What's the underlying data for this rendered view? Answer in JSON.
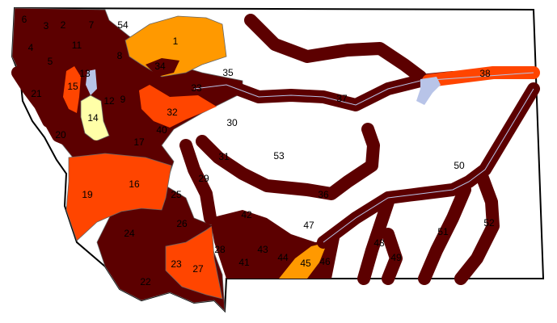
{
  "colors": {
    "severe": "#5c0000",
    "high": "#ff4500",
    "moderate": "#ff9900",
    "low": "#ffffa8",
    "none": "#ffffff",
    "water": "#b8c4e8",
    "boundary": "#000000"
  },
  "basins": [
    {
      "id": "1",
      "level": "moderate"
    },
    {
      "id": "2",
      "level": "severe"
    },
    {
      "id": "3",
      "level": "severe"
    },
    {
      "id": "4",
      "level": "severe"
    },
    {
      "id": "5",
      "level": "severe"
    },
    {
      "id": "6",
      "level": "severe"
    },
    {
      "id": "7",
      "level": "severe"
    },
    {
      "id": "8",
      "level": "severe"
    },
    {
      "id": "9",
      "level": "severe"
    },
    {
      "id": "11",
      "level": "severe"
    },
    {
      "id": "12",
      "level": "severe"
    },
    {
      "id": "13",
      "level": "severe"
    },
    {
      "id": "14",
      "level": "low"
    },
    {
      "id": "15",
      "level": "high"
    },
    {
      "id": "16",
      "level": "high"
    },
    {
      "id": "17",
      "level": "severe"
    },
    {
      "id": "19",
      "level": "high"
    },
    {
      "id": "20",
      "level": "severe"
    },
    {
      "id": "21",
      "level": "severe"
    },
    {
      "id": "22",
      "level": "severe"
    },
    {
      "id": "23",
      "level": "high"
    },
    {
      "id": "24",
      "level": "severe"
    },
    {
      "id": "25",
      "level": "severe"
    },
    {
      "id": "26",
      "level": "severe"
    },
    {
      "id": "27",
      "level": "high"
    },
    {
      "id": "28",
      "level": "severe"
    },
    {
      "id": "29",
      "level": "severe"
    },
    {
      "id": "30",
      "level": "none"
    },
    {
      "id": "31",
      "level": "severe"
    },
    {
      "id": "32",
      "level": "high"
    },
    {
      "id": "33",
      "level": "severe"
    },
    {
      "id": "34",
      "level": "severe"
    },
    {
      "id": "35",
      "level": "none"
    },
    {
      "id": "36",
      "level": "severe"
    },
    {
      "id": "37",
      "level": "severe"
    },
    {
      "id": "38",
      "level": "high"
    },
    {
      "id": "40",
      "level": "severe"
    },
    {
      "id": "41",
      "level": "severe"
    },
    {
      "id": "42",
      "level": "severe"
    },
    {
      "id": "43",
      "level": "severe"
    },
    {
      "id": "44",
      "level": "severe"
    },
    {
      "id": "45",
      "level": "moderate"
    },
    {
      "id": "46",
      "level": "severe"
    },
    {
      "id": "47",
      "level": "none"
    },
    {
      "id": "48",
      "level": "severe"
    },
    {
      "id": "49",
      "level": "severe"
    },
    {
      "id": "50",
      "level": "none"
    },
    {
      "id": "51",
      "level": "severe"
    },
    {
      "id": "52",
      "level": "severe"
    },
    {
      "id": "53",
      "level": "none"
    },
    {
      "id": "54",
      "level": "none"
    }
  ]
}
